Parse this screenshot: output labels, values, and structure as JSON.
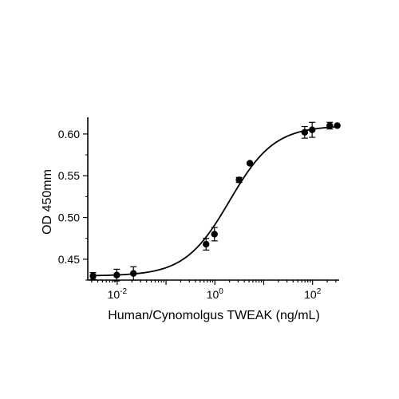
{
  "chart_data": {
    "type": "scatter",
    "title": "",
    "xlabel": "Human/Cynomolgus TWEAK (ng/mL)",
    "ylabel": "OD 450mm",
    "x_scale": "log",
    "xlim": [
      0.0025,
      350
    ],
    "ylim": [
      0.425,
      0.62
    ],
    "grid": false,
    "legend": "none",
    "x_ticks": [
      {
        "value": 0.01,
        "base": "10",
        "exp": "-2"
      },
      {
        "value": 1,
        "base": "10",
        "exp": "0"
      },
      {
        "value": 100,
        "base": "10",
        "exp": "2"
      }
    ],
    "y_ticks": [
      {
        "value": 0.45,
        "label": "0.45"
      },
      {
        "value": 0.5,
        "label": "0.50"
      },
      {
        "value": 0.55,
        "label": "0.55"
      },
      {
        "value": 0.6,
        "label": "0.60"
      }
    ],
    "series": [
      {
        "points": [
          {
            "x": 0.0032,
            "y": 0.43,
            "err": 0.004
          },
          {
            "x": 0.0098,
            "y": 0.431,
            "err": 0.007
          },
          {
            "x": 0.0215,
            "y": 0.433,
            "err": 0.008
          },
          {
            "x": 0.66,
            "y": 0.468,
            "err": 0.007
          },
          {
            "x": 0.98,
            "y": 0.48,
            "err": 0.008
          },
          {
            "x": 3.13,
            "y": 0.545,
            "err": 0.003
          },
          {
            "x": 5.2,
            "y": 0.565,
            "err": 0.001
          },
          {
            "x": 69,
            "y": 0.602,
            "err": 0.007
          },
          {
            "x": 98,
            "y": 0.605,
            "err": 0.009
          },
          {
            "x": 225,
            "y": 0.61,
            "err": 0.004
          },
          {
            "x": 320,
            "y": 0.61,
            "err": 0.001
          }
        ],
        "fit": {
          "model": "4PL",
          "bottom": 0.43,
          "top": 0.61,
          "ec50": 2.0,
          "hill": 0.95
        }
      }
    ],
    "colors": {
      "marker": "#000000",
      "line": "#000000"
    }
  }
}
